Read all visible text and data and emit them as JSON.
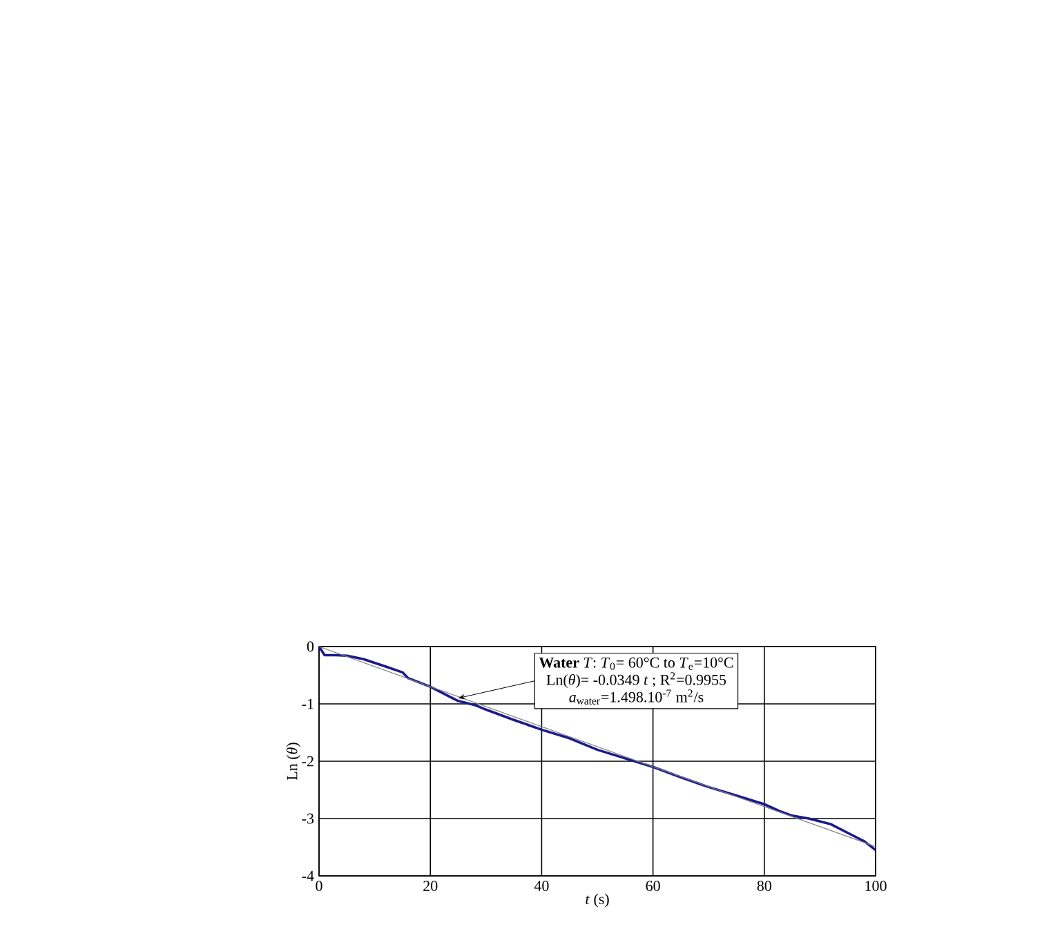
{
  "chart_data": {
    "type": "line",
    "xlabel": "*t* (s)",
    "ylabel": "Ln (*θ*)",
    "xlim": [
      0,
      100
    ],
    "ylim": [
      -4,
      0
    ],
    "xticks": [
      0,
      20,
      40,
      60,
      80,
      100
    ],
    "yticks": [
      -4,
      -3,
      -2,
      -1,
      0
    ],
    "grid": true,
    "marker": "none",
    "line_style": "solid",
    "series": [
      {
        "color": "#1a1a8c",
        "x": [
          0,
          1,
          3,
          5,
          8,
          12,
          15,
          16,
          20,
          23,
          25,
          28,
          30,
          35,
          40,
          45,
          50,
          55,
          60,
          65,
          70,
          75,
          80,
          83,
          85,
          88,
          90,
          92,
          95,
          98,
          100
        ],
        "values": [
          0,
          -0.15,
          -0.15,
          -0.16,
          -0.22,
          -0.35,
          -0.45,
          -0.55,
          -0.7,
          -0.85,
          -0.95,
          -1.02,
          -1.1,
          -1.28,
          -1.45,
          -1.6,
          -1.8,
          -1.95,
          -2.1,
          -2.28,
          -2.45,
          -2.6,
          -2.75,
          -2.88,
          -2.95,
          -3.0,
          -3.05,
          -3.1,
          -3.25,
          -3.4,
          -3.55
        ]
      },
      {
        "type": "line",
        "color": "#808080",
        "x": [
          0,
          100
        ],
        "values": [
          0,
          -3.49
        ]
      }
    ],
    "annotations": [
      "**Water** *T*: *T*$_{0}$= 60°C to *T*$_{e}$=10°C",
      {
        "text": "Ln(*θ*)= -0.0349 *t* ; R$^{2}$=0.9955",
        "x": 25,
        "y": -0.9
      },
      "*a*$_{water}$=1.498.10$^{-7}$ m$^{2}$/s"
    ]
  }
}
